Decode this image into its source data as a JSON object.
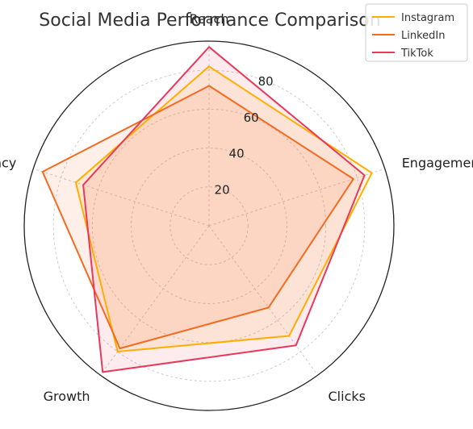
{
  "chart_data": {
    "type": "radar",
    "title": "Social Media Performance Comparison",
    "categories": [
      "Reach",
      "Engagement",
      "Clicks",
      "Growth",
      "Consistency"
    ],
    "r_ticks": [
      20,
      40,
      60,
      80
    ],
    "r_max": 95,
    "grid": true,
    "legend_position": "top-right",
    "series": [
      {
        "name": "Instagram",
        "color": "#ffae00",
        "values": [
          82,
          88,
          70,
          80,
          72
        ]
      },
      {
        "name": "LinkedIn",
        "color": "#f46a1f",
        "values": [
          72,
          78,
          52,
          78,
          90
        ]
      },
      {
        "name": "TikTok",
        "color": "#e8385c",
        "values": [
          92,
          84,
          76,
          93,
          68
        ]
      }
    ]
  }
}
